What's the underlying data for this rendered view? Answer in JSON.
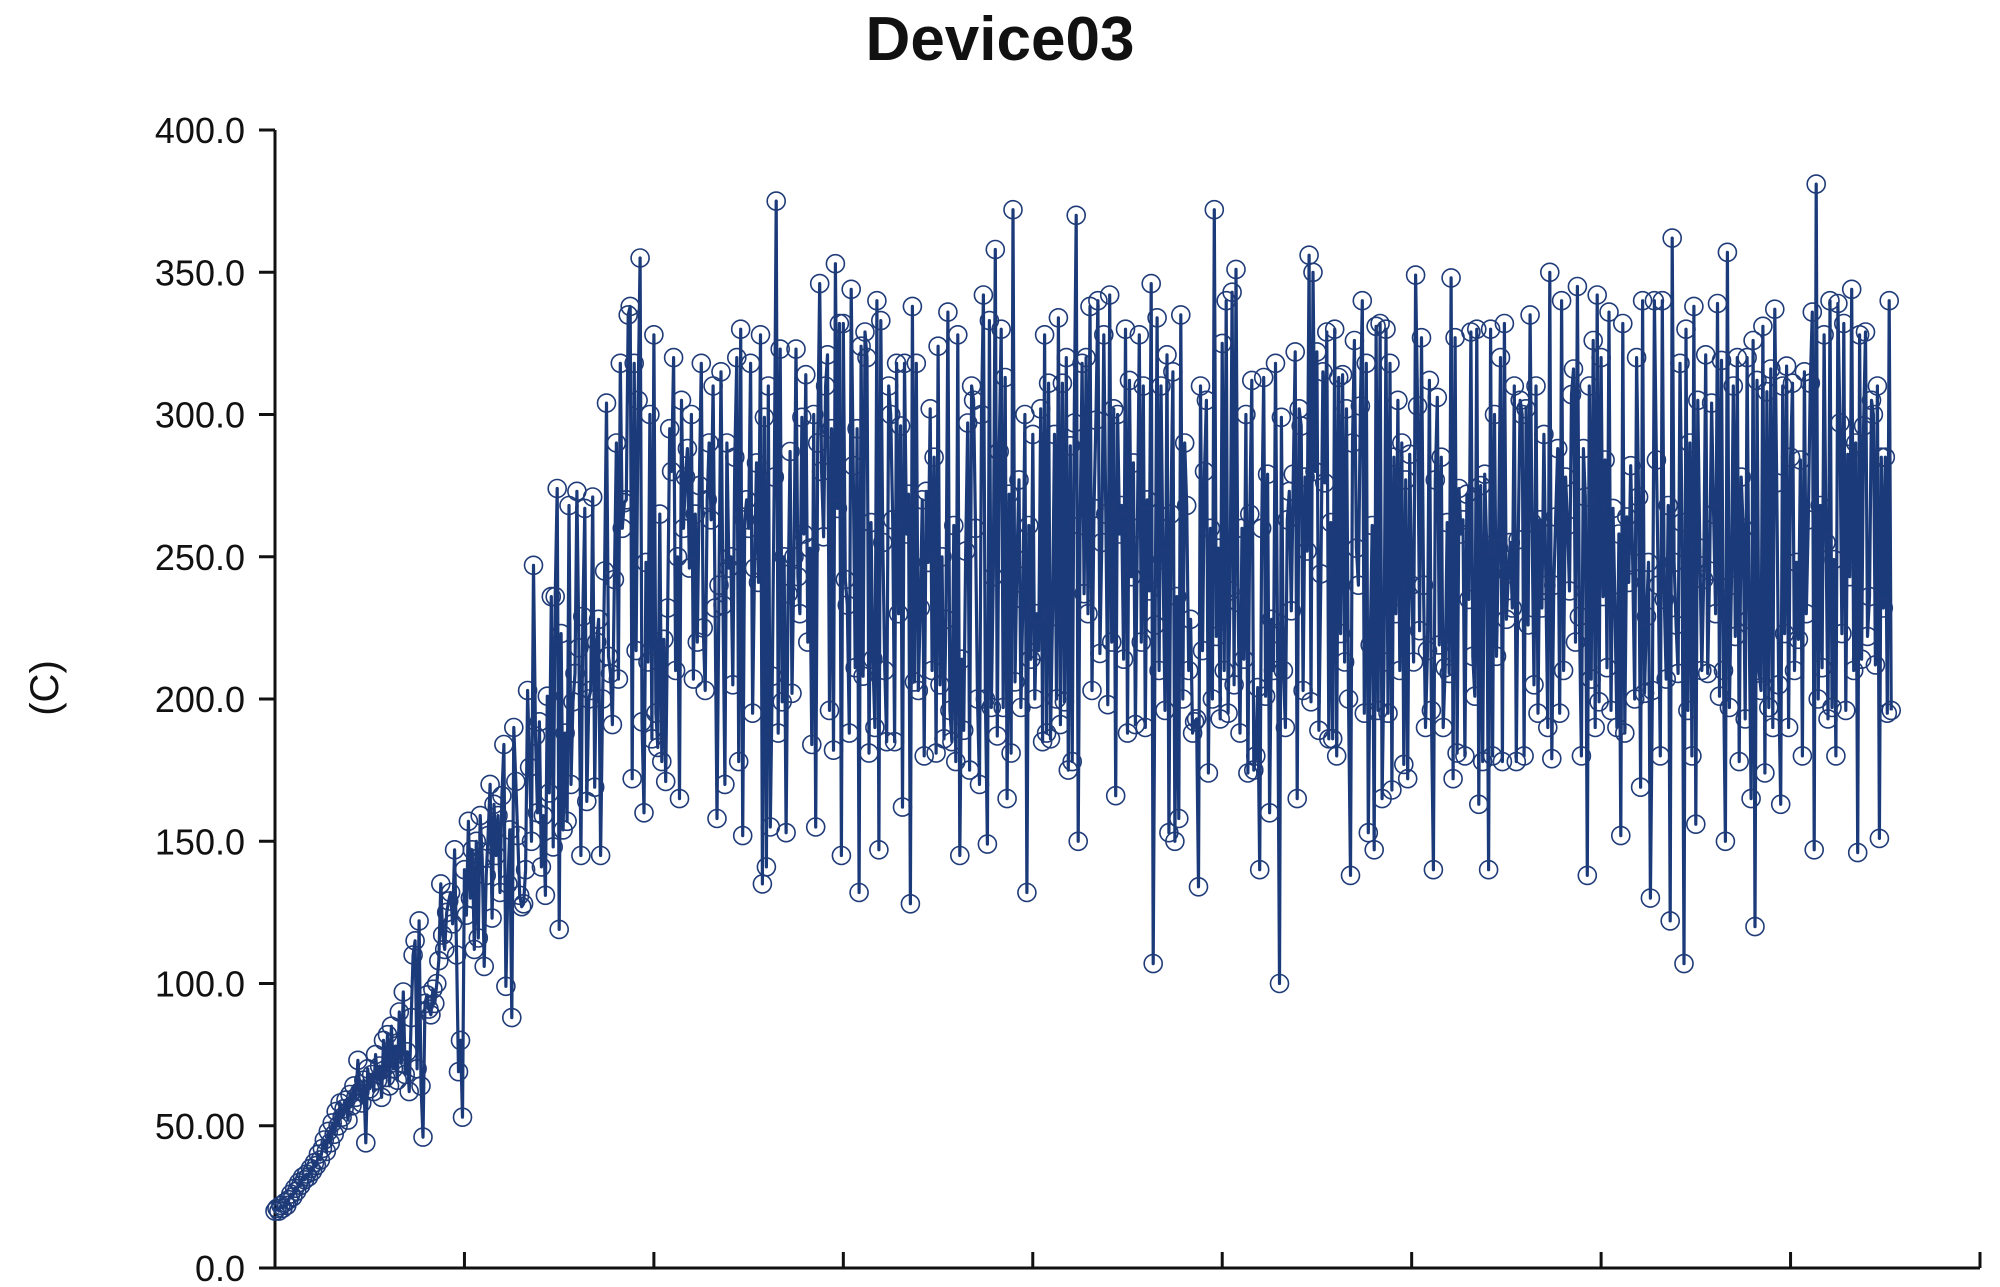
{
  "chart_data": {
    "type": "line",
    "title": "Device03",
    "xlabel": "",
    "ylabel": "(C)",
    "ylim": [
      0,
      400
    ],
    "xlim": [
      0,
      1080
    ],
    "grid": false,
    "legend": "none",
    "colors": {
      "line": "#1b3a7a",
      "marker_stroke": "#1f3b78",
      "axis": "#111111",
      "text": "#111111",
      "background": "#ffffff"
    },
    "y_ticks": [
      {
        "value": 0,
        "label": "0.0"
      },
      {
        "value": 50,
        "label": "50.00"
      },
      {
        "value": 100,
        "label": "100.0"
      },
      {
        "value": 150,
        "label": "150.0"
      },
      {
        "value": 200,
        "label": "200.0"
      },
      {
        "value": 250,
        "label": "250.0"
      },
      {
        "value": 300,
        "label": "300.0"
      },
      {
        "value": 350,
        "label": "350.0"
      },
      {
        "value": 400,
        "label": "400.0"
      }
    ],
    "x_ticks": [
      0,
      120,
      240,
      360,
      480,
      600,
      720,
      840,
      960,
      1080
    ],
    "x_tick_labels": [],
    "series": [
      {
        "type": "line-markers",
        "x_start": 0,
        "x_step": 1.25,
        "values": [
          20,
          21,
          20,
          22,
          21,
          23,
          22,
          24,
          26,
          25,
          28,
          27,
          30,
          29,
          32,
          31,
          33,
          32,
          35,
          34,
          37,
          36,
          40,
          38,
          42,
          45,
          41,
          48,
          44,
          51,
          47,
          55,
          50,
          58,
          53,
          56,
          59,
          52,
          61,
          57,
          64,
          60,
          73,
          62,
          58,
          66,
          44,
          70,
          63,
          68,
          62,
          75,
          66,
          71,
          60,
          80,
          67,
          82,
          64,
          85,
          70,
          78,
          66,
          90,
          72,
          97,
          68,
          76,
          62,
          88,
          110,
          115,
          70,
          122,
          64,
          46,
          93,
          96,
          91,
          89,
          98,
          93,
          100,
          108,
          135,
          117,
          112,
          125,
          129,
          132,
          121,
          147,
          110,
          69,
          80,
          53,
          140,
          124,
          157,
          130,
          147,
          112,
          150,
          116,
          159,
          144,
          106,
          138,
          152,
          170,
          123,
          163,
          145,
          159,
          132,
          166,
          184,
          99,
          135,
          154,
          88,
          190,
          171,
          152,
          131,
          127,
          128,
          140,
          203,
          176,
          150,
          247,
          187,
          160,
          192,
          141,
          159,
          131,
          201,
          167,
          236,
          148,
          236,
          274,
          119,
          223,
          154,
          188,
          157,
          268,
          170,
          199,
          209,
          273,
          218,
          145,
          229,
          267,
          164,
          200,
          203,
          271,
          169,
          220,
          228,
          145,
          200,
          245,
          304,
          215,
          209,
          191,
          242,
          290,
          207,
          318,
          260,
          269,
          270,
          335,
          338,
          172,
          318,
          217,
          305,
          355,
          192,
          160,
          248,
          213,
          300,
          186,
          328,
          195,
          183,
          265,
          178,
          221,
          171,
          232,
          295,
          280,
          320,
          210,
          250,
          165,
          305,
          260,
          278,
          288,
          246,
          300,
          207,
          265,
          220,
          275,
          318,
          225,
          203,
          270,
          290,
          263,
          310,
          232,
          158,
          240,
          315,
          233,
          170,
          290,
          246,
          250,
          205,
          285,
          320,
          178,
          330,
          152,
          263,
          270,
          260,
          318,
          195,
          246,
          283,
          241,
          328,
          135,
          299,
          141,
          310,
          155,
          208,
          278,
          375,
          188,
          323,
          199,
          250,
          153,
          237,
          287,
          202,
          250,
          323,
          243,
          230,
          299,
          258,
          314,
          220,
          253,
          184,
          300,
          155,
          290,
          346,
          280,
          257,
          310,
          321,
          196,
          295,
          182,
          353,
          267,
          332,
          145,
          332,
          242,
          233,
          188,
          344,
          282,
          211,
          295,
          132,
          324,
          208,
          329,
          320,
          181,
          262,
          214,
          190,
          340,
          147,
          333,
          255,
          210,
          185,
          310,
          300,
          263,
          185,
          318,
          230,
          296,
          162,
          318,
          258,
          272,
          128,
          338,
          206,
          318,
          203,
          232,
          270,
          180,
          273,
          248,
          302,
          210,
          285,
          181,
          324,
          205,
          250,
          186,
          228,
          336,
          196,
          185,
          261,
          178,
          328,
          145,
          214,
          189,
          252,
          297,
          175,
          310,
          305,
          260,
          200,
          170,
          300,
          342,
          200,
          149,
          333,
          197,
          243,
          358,
          187,
          287,
          330,
          197,
          313,
          165,
          272,
          181,
          372,
          206,
          249,
          277,
          197,
          235,
          300,
          132,
          261,
          214,
          293,
          200,
          230,
          217,
          302,
          185,
          328,
          188,
          311,
          186,
          229,
          293,
          200,
          334,
          191,
          311,
          199,
          320,
          175,
          289,
          178,
          297,
          370,
          150,
          261,
          318,
          237,
          320,
          230,
          338,
          203,
          267,
          298,
          340,
          216,
          255,
          328,
          265,
          198,
          342,
          220,
          302,
          166,
          300,
          258,
          268,
          214,
          330,
          188,
          312,
          243,
          283,
          191,
          260,
          328,
          220,
          310,
          190,
          270,
          238,
          346,
          107,
          226,
          334,
          210,
          310,
          249,
          196,
          321,
          153,
          265,
          315,
          150,
          236,
          158,
          335,
          200,
          290,
          268,
          210,
          228,
          188,
          192,
          193,
          134,
          310,
          217,
          280,
          305,
          174,
          260,
          200,
          372,
          222,
          253,
          193,
          325,
          210,
          340,
          195,
          238,
          343,
          205,
          351,
          234,
          188,
          260,
          214,
          300,
          174,
          265,
          312,
          175,
          180,
          204,
          140,
          260,
          313,
          201,
          279,
          160,
          228,
          210,
          318,
          223,
          100,
          299,
          210,
          190,
          263,
          273,
          231,
          279,
          322,
          165,
          302,
          296,
          203,
          278,
          252,
          356,
          199,
          350,
          280,
          322,
          189,
          244,
          315,
          276,
          329,
          186,
          262,
          186,
          330,
          180,
          313,
          223,
          314,
          213,
          302,
          200,
          138,
          290,
          326,
          253,
          240,
          303,
          340,
          195,
          318,
          153,
          219,
          261,
          147,
          331,
          196,
          332,
          165,
          213,
          330,
          195,
          318,
          168,
          285,
          230,
          305,
          210,
          290,
          177,
          277,
          172,
          286,
          240,
          213,
          349,
          303,
          224,
          327,
          240,
          190,
          217,
          312,
          196,
          140,
          277,
          306,
          219,
          285,
          190,
          211,
          262,
          209,
          348,
          172,
          327,
          181,
          274,
          258,
          263,
          180,
          272,
          235,
          329,
          215,
          201,
          330,
          163,
          275,
          178,
          279,
          254,
          140,
          330,
          180,
          300,
          215,
          253,
          320,
          178,
          332,
          228,
          244,
          255,
          232,
          310,
          178,
          256,
          305,
          300,
          180,
          302,
          226,
          335,
          262,
          205,
          310,
          195,
          263,
          232,
          293,
          240,
          190,
          350,
          179,
          240,
          264,
          288,
          195,
          340,
          210,
          278,
          261,
          238,
          307,
          316,
          220,
          345,
          229,
          180,
          288,
          271,
          138,
          310,
          207,
          326,
          190,
          342,
          199,
          320,
          236,
          284,
          211,
          336,
          196,
          267,
          234,
          190,
          258,
          152,
          332,
          188,
          264,
          241,
          282,
          248,
          200,
          320,
          271,
          169,
          340,
          202,
          229,
          248,
          130,
          203,
          340,
          284,
          240,
          180,
          340,
          235,
          207,
          268,
          122,
          362,
          248,
          226,
          209,
          318,
          262,
          107,
          330,
          196,
          290,
          180,
          338,
          156,
          305,
          253,
          210,
          242,
          321,
          209,
          245,
          304,
          265,
          230,
          339,
          201,
          319,
          210,
          150,
          357,
          197,
          240,
          310,
          222,
          320,
          178,
          278,
          260,
          193,
          320,
          228,
          165,
          326,
          120,
          312,
          210,
          203,
          331,
          174,
          308,
          197,
          316,
          190,
          337,
          276,
          205,
          163,
          310,
          223,
          317,
          190,
          285,
          311,
          210,
          248,
          221,
          284,
          180,
          315,
          230,
          263,
          311,
          336,
          147,
          381,
          200,
          268,
          211,
          328,
          255,
          193,
          340,
          197,
          249,
          180,
          339,
          297,
          223,
          332,
          196,
          286,
          243,
          344,
          210,
          290,
          146,
          328,
          214,
          296,
          329,
          222,
          236,
          305,
          300,
          212,
          310,
          151,
          285,
          232,
          285,
          195,
          340,
          196
        ]
      }
    ]
  }
}
